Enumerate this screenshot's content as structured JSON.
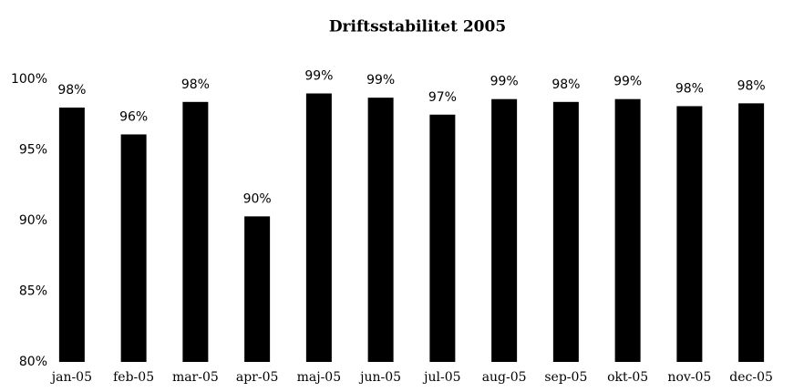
{
  "chart_data": {
    "type": "bar",
    "title": "Driftsstabilitet 2005",
    "categories": [
      "jan-05",
      "feb-05",
      "mar-05",
      "apr-05",
      "maj-05",
      "jun-05",
      "jul-05",
      "aug-05",
      "sep-05",
      "okt-05",
      "nov-05",
      "dec-05"
    ],
    "values": [
      98.0,
      96.1,
      98.4,
      90.3,
      99.0,
      98.7,
      97.5,
      98.6,
      98.4,
      98.6,
      98.1,
      98.3
    ],
    "value_labels": [
      "98%",
      "96%",
      "98%",
      "90%",
      "99%",
      "99%",
      "97%",
      "99%",
      "98%",
      "99%",
      "98%",
      "98%"
    ],
    "color": "#000000",
    "ylim": [
      80,
      100
    ],
    "yticks": [
      {
        "value": 80,
        "label": "80%"
      },
      {
        "value": 85,
        "label": "85%"
      },
      {
        "value": 90,
        "label": "90%"
      },
      {
        "value": 95,
        "label": "95%"
      },
      {
        "value": 100,
        "label": "100%"
      }
    ],
    "grid": false
  }
}
